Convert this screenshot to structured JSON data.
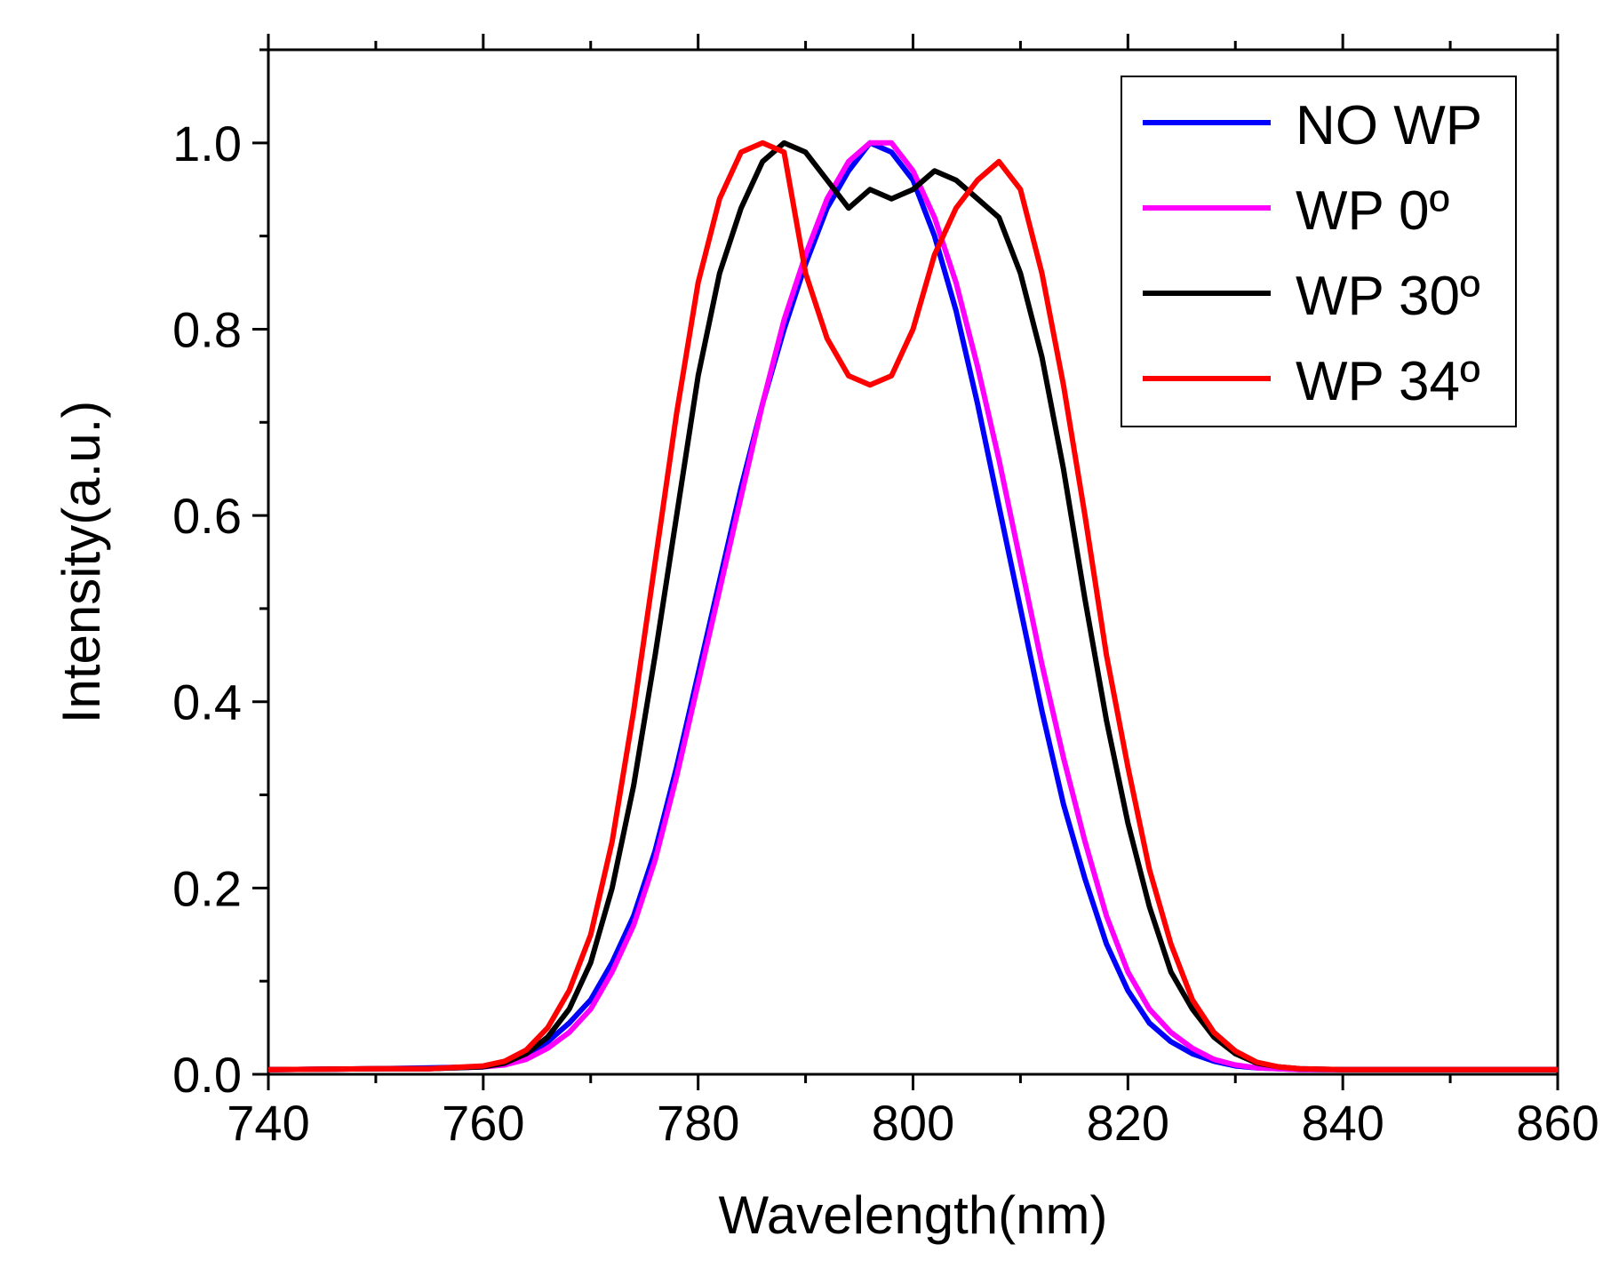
{
  "chart_data": {
    "type": "line",
    "title": "",
    "xlabel": "Wavelength(nm)",
    "ylabel": "Intensity(a.u.)",
    "xlim": [
      740,
      860
    ],
    "ylim": [
      0,
      1.1
    ],
    "x_ticks": [
      740,
      760,
      780,
      800,
      820,
      840,
      860
    ],
    "x_tick_labels": [
      "740",
      "760",
      "780",
      "800",
      "820",
      "840",
      "860"
    ],
    "y_ticks": [
      0.0,
      0.2,
      0.4,
      0.6,
      0.8,
      1.0
    ],
    "y_tick_labels": [
      "0.0",
      "0.2",
      "0.4",
      "0.6",
      "0.8",
      "1.0"
    ],
    "grid": false,
    "legend_position": "top-right",
    "series": [
      {
        "name": "NO WP",
        "color": "#0000ff",
        "x": [
          740,
          750,
          755,
          760,
          762,
          764,
          766,
          768,
          770,
          772,
          774,
          776,
          778,
          780,
          782,
          784,
          786,
          788,
          790,
          792,
          794,
          796,
          798,
          800,
          802,
          804,
          806,
          808,
          810,
          812,
          814,
          816,
          818,
          820,
          822,
          824,
          826,
          828,
          830,
          832,
          834,
          836,
          840,
          850,
          860
        ],
        "y": [
          0.005,
          0.006,
          0.007,
          0.008,
          0.012,
          0.02,
          0.035,
          0.055,
          0.08,
          0.12,
          0.17,
          0.24,
          0.33,
          0.43,
          0.53,
          0.63,
          0.72,
          0.8,
          0.87,
          0.93,
          0.97,
          1.0,
          0.99,
          0.96,
          0.9,
          0.82,
          0.72,
          0.61,
          0.5,
          0.39,
          0.29,
          0.21,
          0.14,
          0.09,
          0.055,
          0.035,
          0.022,
          0.014,
          0.009,
          0.007,
          0.006,
          0.005,
          0.005,
          0.005,
          0.005
        ]
      },
      {
        "name": "WP 0º",
        "color": "#ff00ff",
        "x": [
          740,
          750,
          755,
          760,
          762,
          764,
          766,
          768,
          770,
          772,
          774,
          776,
          778,
          780,
          782,
          784,
          786,
          788,
          790,
          792,
          794,
          796,
          798,
          800,
          802,
          804,
          806,
          808,
          810,
          812,
          814,
          816,
          818,
          820,
          822,
          824,
          826,
          828,
          830,
          832,
          834,
          836,
          840,
          850,
          860
        ],
        "y": [
          0.005,
          0.006,
          0.006,
          0.008,
          0.01,
          0.016,
          0.028,
          0.045,
          0.07,
          0.11,
          0.16,
          0.23,
          0.32,
          0.42,
          0.52,
          0.62,
          0.72,
          0.81,
          0.88,
          0.94,
          0.98,
          1.0,
          1.0,
          0.97,
          0.92,
          0.85,
          0.76,
          0.66,
          0.55,
          0.44,
          0.34,
          0.25,
          0.17,
          0.11,
          0.07,
          0.045,
          0.028,
          0.016,
          0.01,
          0.007,
          0.006,
          0.005,
          0.005,
          0.005,
          0.005
        ]
      },
      {
        "name": "WP 30º",
        "color": "#000000",
        "x": [
          740,
          750,
          755,
          760,
          762,
          764,
          766,
          768,
          770,
          772,
          774,
          776,
          778,
          780,
          782,
          784,
          786,
          788,
          790,
          792,
          794,
          796,
          798,
          800,
          802,
          804,
          806,
          808,
          810,
          812,
          814,
          816,
          818,
          820,
          822,
          824,
          826,
          828,
          830,
          832,
          834,
          836,
          840,
          850,
          860
        ],
        "y": [
          0.005,
          0.006,
          0.006,
          0.008,
          0.012,
          0.022,
          0.04,
          0.07,
          0.12,
          0.2,
          0.31,
          0.45,
          0.6,
          0.75,
          0.86,
          0.93,
          0.98,
          1.0,
          0.99,
          0.96,
          0.93,
          0.95,
          0.94,
          0.95,
          0.97,
          0.96,
          0.94,
          0.92,
          0.86,
          0.77,
          0.65,
          0.51,
          0.38,
          0.27,
          0.18,
          0.11,
          0.07,
          0.04,
          0.022,
          0.012,
          0.008,
          0.006,
          0.005,
          0.005,
          0.005
        ]
      },
      {
        "name": "WP 34º",
        "color": "#ff0000",
        "x": [
          740,
          750,
          755,
          760,
          762,
          764,
          766,
          768,
          770,
          772,
          774,
          776,
          778,
          780,
          782,
          784,
          786,
          788,
          790,
          792,
          794,
          796,
          798,
          800,
          802,
          804,
          806,
          808,
          810,
          812,
          814,
          816,
          818,
          820,
          822,
          824,
          826,
          828,
          830,
          832,
          834,
          836,
          840,
          850,
          860
        ],
        "y": [
          0.005,
          0.006,
          0.006,
          0.009,
          0.014,
          0.026,
          0.05,
          0.09,
          0.15,
          0.25,
          0.39,
          0.55,
          0.71,
          0.85,
          0.94,
          0.99,
          1.0,
          0.99,
          0.86,
          0.79,
          0.75,
          0.74,
          0.75,
          0.8,
          0.88,
          0.93,
          0.96,
          0.98,
          0.95,
          0.86,
          0.74,
          0.6,
          0.45,
          0.33,
          0.22,
          0.14,
          0.08,
          0.045,
          0.025,
          0.013,
          0.008,
          0.006,
          0.005,
          0.005,
          0.005
        ]
      }
    ]
  }
}
